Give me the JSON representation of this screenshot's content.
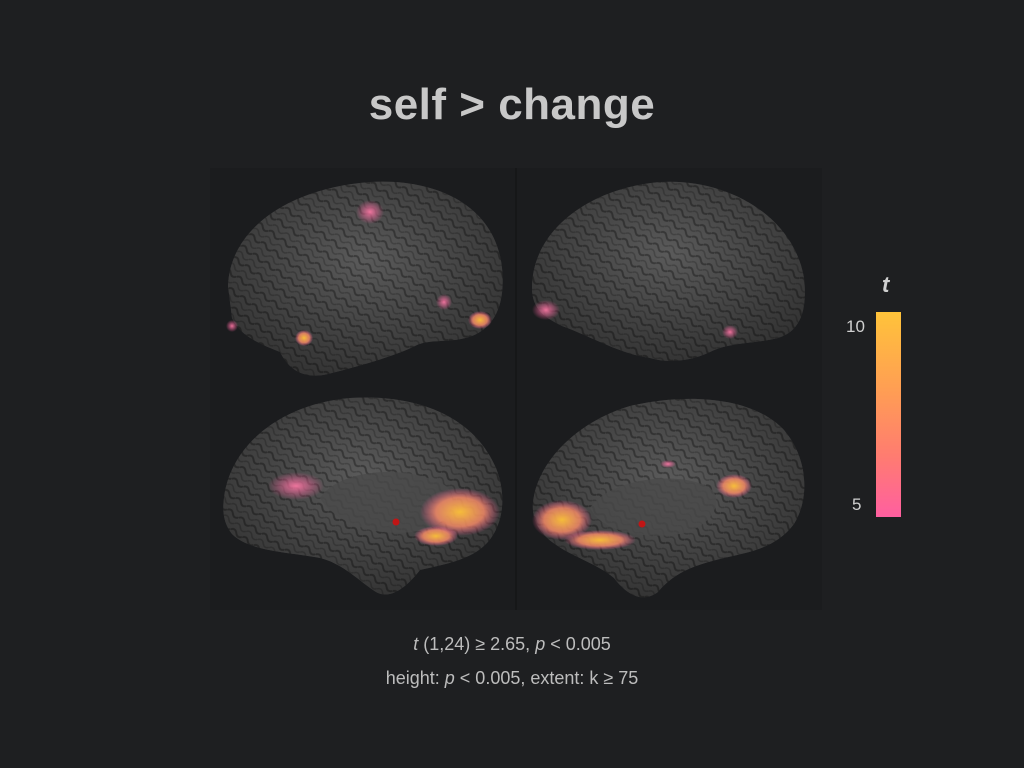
{
  "title": "self > change",
  "colorbar": {
    "label": "t",
    "max": 10,
    "min": 5,
    "color_top": "#ffc33a",
    "color_bottom": "#ff5fa0"
  },
  "captions": {
    "line1": {
      "t_symbol": "t",
      "df": "(1,24) ≥ 2.65,",
      "p_symbol": "p",
      "p_rest": "< 0.005"
    },
    "line2": {
      "prefix": "height:",
      "p_symbol": "p",
      "p_rest": "< 0.005,  extent: k ≥ 75"
    }
  },
  "colors": {
    "background": "#1e1f21",
    "cortex": "#555555",
    "activation_hot": "#ffc33a",
    "activation_cool": "#ff5fa0"
  }
}
